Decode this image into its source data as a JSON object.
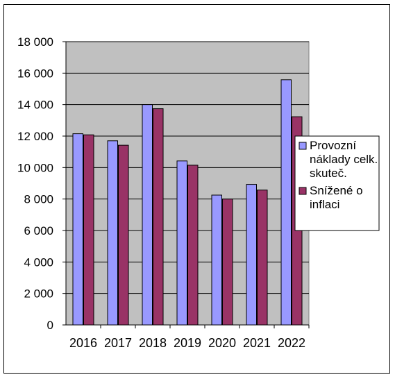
{
  "chart_data": {
    "type": "bar",
    "title": "",
    "xlabel": "",
    "ylabel": "",
    "categories": [
      "2016",
      "2017",
      "2018",
      "2019",
      "2020",
      "2021",
      "2022"
    ],
    "series": [
      {
        "name": "Provozní náklady celk. skuteč.",
        "color": "#9999ff",
        "values": [
          12150,
          11700,
          14000,
          10420,
          8250,
          8930,
          15580
        ]
      },
      {
        "name": "Snížené o inflaci",
        "color": "#993366",
        "values": [
          12080,
          11420,
          13740,
          10150,
          8000,
          8570,
          13230
        ]
      }
    ],
    "ylim": [
      0,
      18000
    ],
    "yticks": [
      0,
      2000,
      4000,
      6000,
      8000,
      10000,
      12000,
      14000,
      16000,
      18000
    ],
    "ytick_labels": [
      "0",
      "2 000",
      "4 000",
      "6 000",
      "8 000",
      "10 000",
      "12 000",
      "14 000",
      "16 000",
      "18 000"
    ],
    "grid": true,
    "plot_background": "#c0c0c0",
    "legend_position": "right",
    "legend": [
      {
        "lines": [
          "Provozní",
          "náklady celk.",
          "skuteč."
        ]
      },
      {
        "lines": [
          "Snížené o",
          "inflaci"
        ]
      }
    ]
  }
}
